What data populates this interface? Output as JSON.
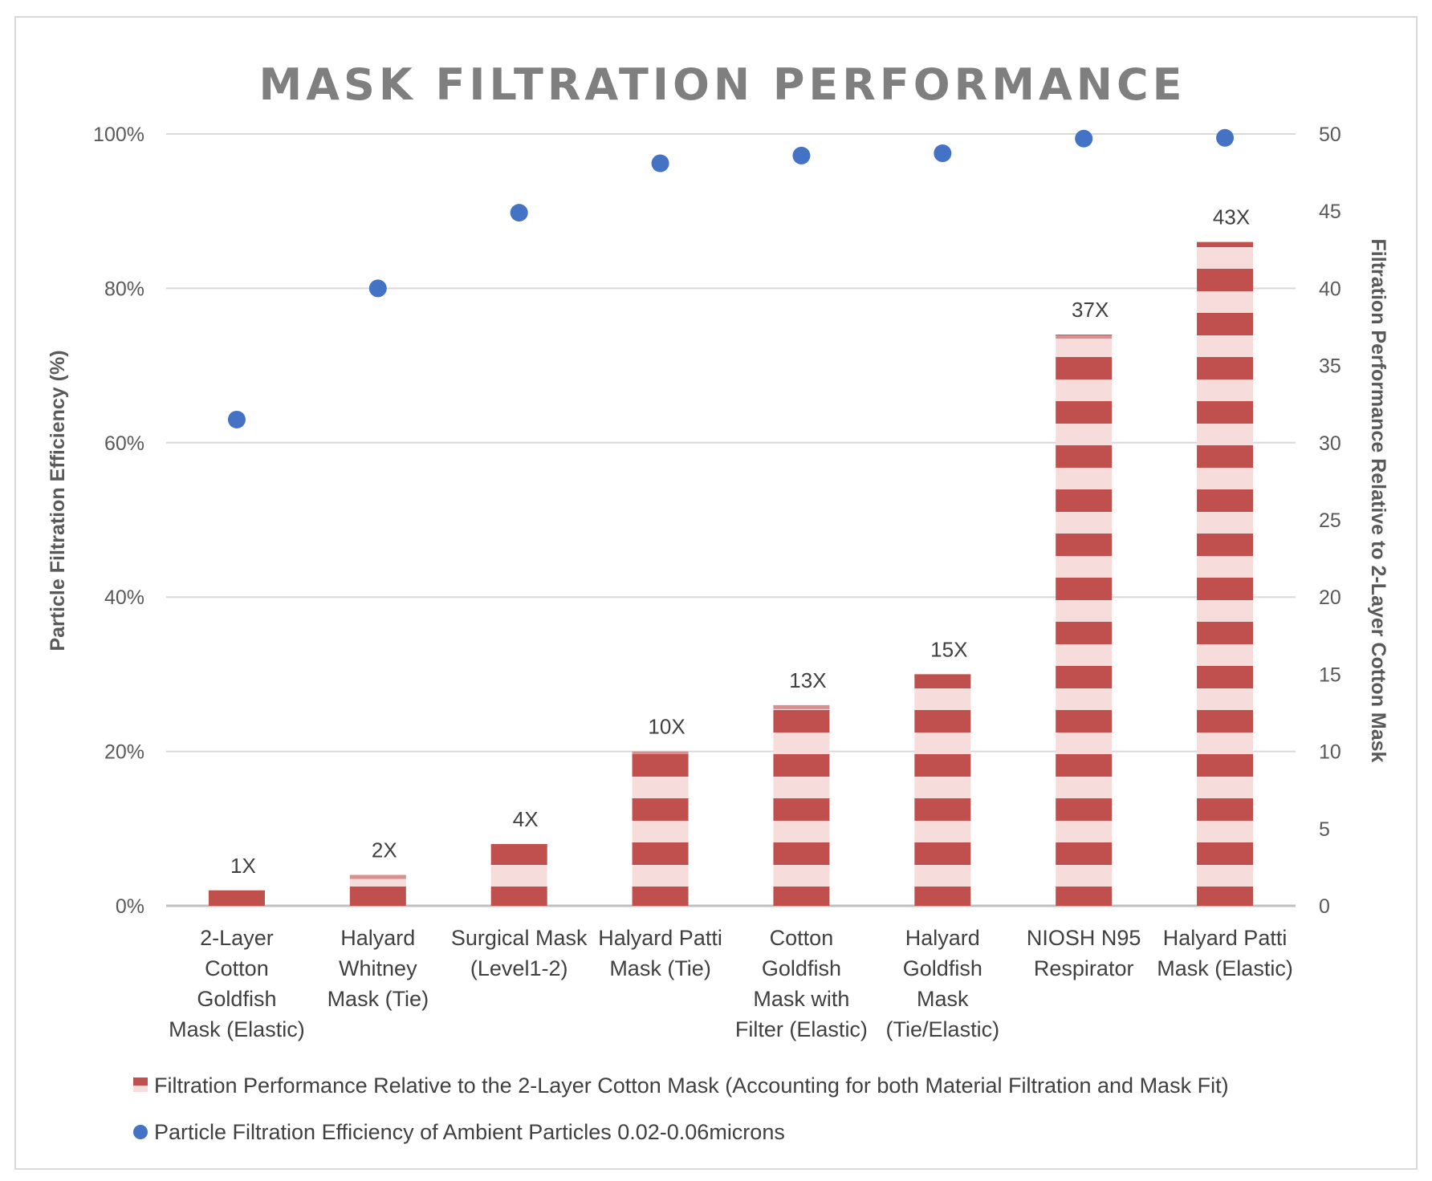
{
  "colors": {
    "bar_stripe": "#c0504d",
    "bar_light": "#f6dcdb",
    "dot": "#4472c4",
    "grid": "#d9d9d9",
    "axis": "#bfbfbf",
    "title": "#7f7f7f"
  },
  "chart_data": {
    "type": "bar",
    "title": "MASK FILTRATION PERFORMANCE",
    "ylabel_left": "Particle Filtration Efficiency (%)",
    "ylabel_right": "Filtration Performance Relative to 2-Layer Cotton Mask",
    "left_ticks": [
      "0%",
      "20%",
      "40%",
      "60%",
      "80%",
      "100%"
    ],
    "right_ticks": [
      "0",
      "5",
      "10",
      "15",
      "20",
      "25",
      "30",
      "35",
      "40",
      "45",
      "50"
    ],
    "ylim_left": [
      0,
      100
    ],
    "ylim_right": [
      0,
      50
    ],
    "grid": true,
    "legend_position": "bottom",
    "categories": [
      [
        "2-Layer",
        "Cotton",
        "Goldfish",
        "Mask (Elastic)"
      ],
      [
        "Halyard",
        "Whitney",
        "Mask (Tie)"
      ],
      [
        "Surgical Mask",
        "(Level1-2)"
      ],
      [
        "Halyard Patti",
        "Mask (Tie)"
      ],
      [
        "Cotton",
        "Goldfish",
        "Mask with",
        "Filter (Elastic)"
      ],
      [
        "Halyard",
        "Goldfish",
        "Mask",
        "(Tie/Elastic)"
      ],
      [
        "NIOSH N95",
        "Respirator"
      ],
      [
        "Halyard Patti",
        "Mask (Elastic)"
      ]
    ],
    "series": [
      {
        "name": "Filtration Performance Relative to the 2-Layer Cotton Mask (Accounting for both Material Filtration and Mask Fit)",
        "type": "bar",
        "axis": "right",
        "values": [
          1,
          2,
          4,
          10,
          13,
          15,
          37,
          43
        ],
        "labels": [
          "1X",
          "2X",
          "4X",
          "10X",
          "13X",
          "15X",
          "37X",
          "43X"
        ]
      },
      {
        "name": "Particle Filtration Efficiency of Ambient Particles 0.02-0.06microns",
        "type": "scatter",
        "axis": "left",
        "values": [
          63,
          80,
          89.8,
          96.2,
          97.2,
          97.5,
          99.4,
          99.5
        ]
      }
    ]
  }
}
